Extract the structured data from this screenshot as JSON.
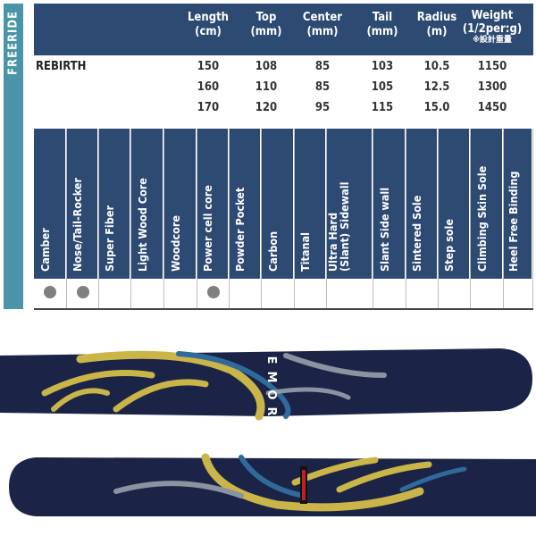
{
  "category": "FREERIDE",
  "spec_headers": [
    {
      "l1": "Length",
      "l2": "(cm)"
    },
    {
      "l1": "Top",
      "l2": "(mm)"
    },
    {
      "l1": "Center",
      "l2": "(mm)"
    },
    {
      "l1": "Tail",
      "l2": "(mm)"
    },
    {
      "l1": "Radius",
      "l2": "(m)"
    },
    {
      "l1": "Weight",
      "l2": "(1/2per:g)",
      "note": "※設計重量"
    }
  ],
  "model": "REBIRTH",
  "spec_rows": [
    [
      "150",
      "108",
      "85",
      "103",
      "10.5",
      "1150"
    ],
    [
      "160",
      "110",
      "85",
      "105",
      "12.5",
      "1300"
    ],
    [
      "170",
      "120",
      "95",
      "115",
      "15.0",
      "1450"
    ]
  ],
  "features": [
    {
      "label": "Camber",
      "checked": true
    },
    {
      "label": "Nose/Tail-Rocker",
      "checked": true
    },
    {
      "label": "Super Fiber",
      "checked": false
    },
    {
      "label": "Light Wood Core",
      "checked": false
    },
    {
      "label": "Woodcore",
      "checked": false
    },
    {
      "label": "Power cell core",
      "checked": true
    },
    {
      "label": "Powder Pocket",
      "checked": false
    },
    {
      "label": "Carbon",
      "checked": false
    },
    {
      "label": "Titanal",
      "checked": false
    },
    {
      "label": "Ultra Hard\n(Slant) Sidewall",
      "checked": false
    },
    {
      "label": "Slant Side wall",
      "checked": false
    },
    {
      "label": "Sintered Sole",
      "checked": false
    },
    {
      "label": "Step sole",
      "checked": false
    },
    {
      "label": "Climbing Skin Sole",
      "checked": false
    },
    {
      "label": "Heel Free Binding",
      "checked": false
    }
  ],
  "ski_logo": "BLUEMORIS",
  "colors": {
    "header": "#2d4a72",
    "sidebar": "#4a94a8",
    "ski_base": "#1b2447",
    "ski_gold": "#c9b548",
    "ski_blue": "#2f6a9a",
    "dot": "#808080"
  }
}
